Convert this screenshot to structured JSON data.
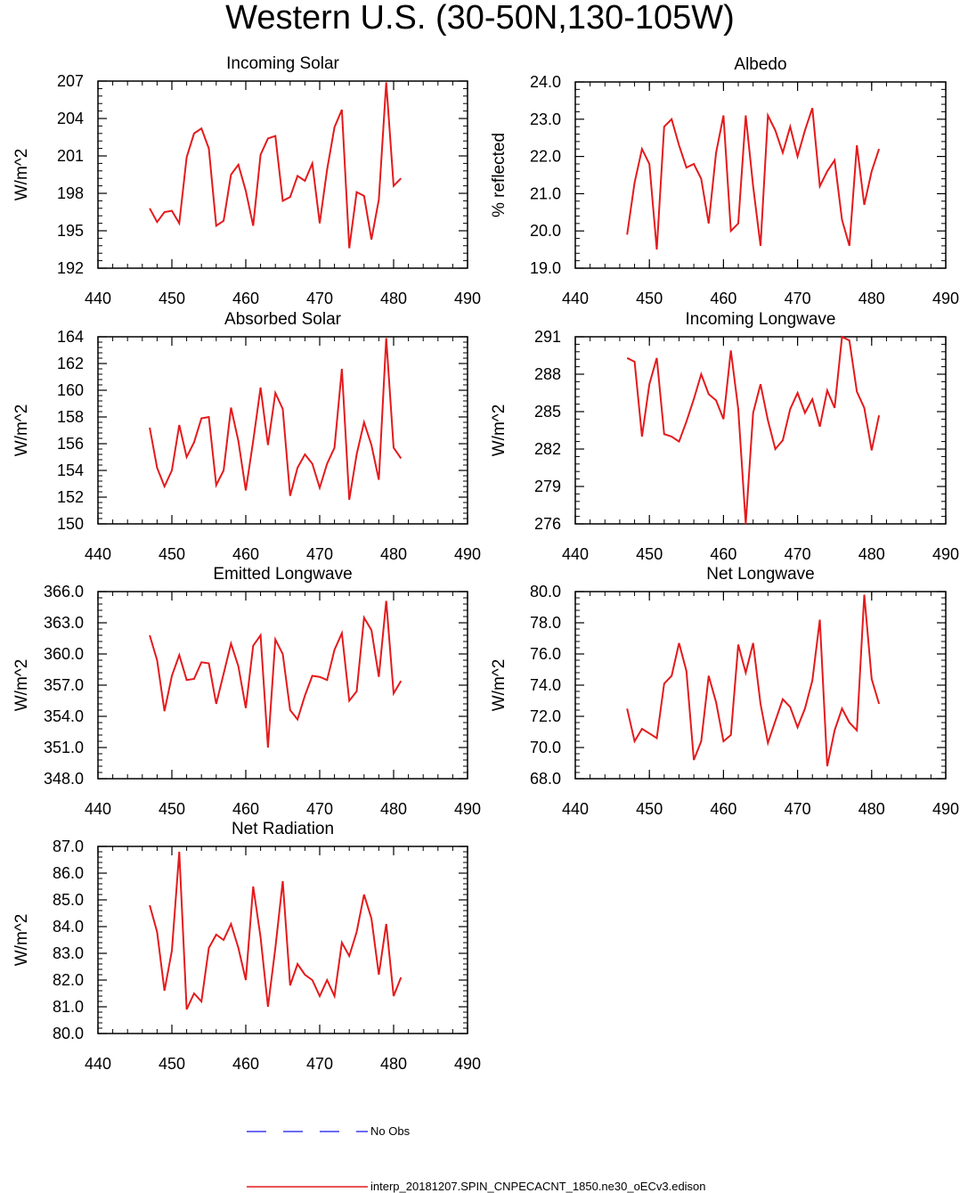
{
  "title": "Western U.S. (30-50N,130-105W)",
  "legend": {
    "obs_label": "No Obs",
    "obs_color": "#3b3bf0",
    "model_label": "interp_20181207.SPIN_CNPECACNT_1850.ne30_oECv3.edison",
    "model_color": "#e41a1c"
  },
  "chart_data": [
    {
      "type": "line",
      "title": "Incoming Solar",
      "ylabel": "W/m^2",
      "xlim": [
        440,
        490
      ],
      "ylim": [
        192,
        207
      ],
      "xticks": [
        "440",
        "450",
        "460",
        "470",
        "480",
        "490"
      ],
      "yticks": [
        "192",
        "195",
        "198",
        "201",
        "204",
        "207"
      ],
      "x": [
        447,
        448,
        449,
        450,
        451,
        452,
        453,
        454,
        455,
        456,
        457,
        458,
        459,
        460,
        461,
        462,
        463,
        464,
        465,
        466,
        467,
        468,
        469,
        470,
        471,
        472,
        473,
        474,
        475,
        476,
        477,
        478,
        479,
        480,
        481
      ],
      "series": [
        {
          "values": [
            196.8,
            195.7,
            196.5,
            196.6,
            195.6,
            200.9,
            202.8,
            203.2,
            201.6,
            195.4,
            195.8,
            199.5,
            200.3,
            198.2,
            195.4,
            201.1,
            202.4,
            202.6,
            197.4,
            197.7,
            199.4,
            199.0,
            200.4,
            195.6,
            199.9,
            203.3,
            204.7,
            193.6,
            198.1,
            197.8,
            194.3,
            197.5,
            206.9,
            198.6,
            199.2
          ]
        }
      ]
    },
    {
      "type": "line",
      "title": "Albedo",
      "ylabel": "% reflected",
      "xlim": [
        440,
        490
      ],
      "ylim": [
        19.0,
        24.0
      ],
      "xticks": [
        "440",
        "450",
        "460",
        "470",
        "480",
        "490"
      ],
      "yticks": [
        "19.0",
        "20.0",
        "21.0",
        "22.0",
        "23.0",
        "24.0"
      ],
      "x": [
        447,
        448,
        449,
        450,
        451,
        452,
        453,
        454,
        455,
        456,
        457,
        458,
        459,
        460,
        461,
        462,
        463,
        464,
        465,
        466,
        467,
        468,
        469,
        470,
        471,
        472,
        473,
        474,
        475,
        476,
        477,
        478,
        479,
        480,
        481
      ],
      "series": [
        {
          "values": [
            19.9,
            21.3,
            22.2,
            21.8,
            19.5,
            22.8,
            23.0,
            22.3,
            21.7,
            21.8,
            21.4,
            20.2,
            22.1,
            23.1,
            20.0,
            20.2,
            23.1,
            21.2,
            19.6,
            23.1,
            22.7,
            22.1,
            22.8,
            22.0,
            22.7,
            23.3,
            21.2,
            21.6,
            21.9,
            20.3,
            19.6,
            22.3,
            20.7,
            21.6,
            22.2
          ]
        }
      ]
    },
    {
      "type": "line",
      "title": "Absorbed Solar",
      "ylabel": "W/m^2",
      "xlim": [
        440,
        490
      ],
      "ylim": [
        150,
        164
      ],
      "xticks": [
        "440",
        "450",
        "460",
        "470",
        "480",
        "490"
      ],
      "yticks": [
        "150",
        "152",
        "154",
        "156",
        "158",
        "160",
        "162",
        "164"
      ],
      "x": [
        447,
        448,
        449,
        450,
        451,
        452,
        453,
        454,
        455,
        456,
        457,
        458,
        459,
        460,
        461,
        462,
        463,
        464,
        465,
        466,
        467,
        468,
        469,
        470,
        471,
        472,
        473,
        474,
        475,
        476,
        477,
        478,
        479,
        480,
        481
      ],
      "series": [
        {
          "values": [
            157.2,
            154.2,
            152.8,
            154.0,
            157.4,
            155.0,
            156.1,
            157.9,
            158.0,
            152.9,
            154.0,
            158.7,
            156.2,
            152.5,
            156.2,
            160.2,
            155.9,
            159.8,
            158.6,
            152.1,
            154.2,
            155.2,
            154.5,
            152.7,
            154.5,
            155.7,
            161.6,
            151.8,
            155.2,
            157.6,
            155.9,
            153.3,
            163.9,
            155.7,
            154.9
          ]
        }
      ]
    },
    {
      "type": "line",
      "title": "Incoming Longwave",
      "ylabel": "W/m^2",
      "xlim": [
        440,
        490
      ],
      "ylim": [
        276,
        291
      ],
      "xticks": [
        "440",
        "450",
        "460",
        "470",
        "480",
        "490"
      ],
      "yticks": [
        "276",
        "279",
        "282",
        "285",
        "288",
        "291"
      ],
      "x": [
        447,
        448,
        449,
        450,
        451,
        452,
        453,
        454,
        455,
        456,
        457,
        458,
        459,
        460,
        461,
        462,
        463,
        464,
        465,
        466,
        467,
        468,
        469,
        470,
        471,
        472,
        473,
        474,
        475,
        476,
        477,
        478,
        479,
        480,
        481
      ],
      "series": [
        {
          "values": [
            289.3,
            289.0,
            283.0,
            287.2,
            289.3,
            283.2,
            283.0,
            282.6,
            284.2,
            286.0,
            288.0,
            286.4,
            285.9,
            284.4,
            289.9,
            285.2,
            276.0,
            284.9,
            287.2,
            284.3,
            282.0,
            282.7,
            285.2,
            286.5,
            284.9,
            286.0,
            283.8,
            286.7,
            285.3,
            291.0,
            290.7,
            286.6,
            285.3,
            281.9,
            284.7
          ]
        }
      ]
    },
    {
      "type": "line",
      "title": "Emitted Longwave",
      "ylabel": "W/m^2",
      "xlim": [
        440,
        490
      ],
      "ylim": [
        348.0,
        366.0
      ],
      "xticks": [
        "440",
        "450",
        "460",
        "470",
        "480",
        "490"
      ],
      "yticks": [
        "348.0",
        "351.0",
        "354.0",
        "357.0",
        "360.0",
        "363.0",
        "366.0"
      ],
      "x": [
        447,
        448,
        449,
        450,
        451,
        452,
        453,
        454,
        455,
        456,
        457,
        458,
        459,
        460,
        461,
        462,
        463,
        464,
        465,
        466,
        467,
        468,
        469,
        470,
        471,
        472,
        473,
        474,
        475,
        476,
        477,
        478,
        479,
        480,
        481
      ],
      "series": [
        {
          "values": [
            361.8,
            359.4,
            354.5,
            357.9,
            359.9,
            357.5,
            357.6,
            359.2,
            359.1,
            355.2,
            358.1,
            361.0,
            358.8,
            354.8,
            360.8,
            361.8,
            351.0,
            361.4,
            360.0,
            354.6,
            353.7,
            356.0,
            357.9,
            357.8,
            357.5,
            360.4,
            362.0,
            355.5,
            356.4,
            363.5,
            362.3,
            357.8,
            365.1,
            356.2,
            357.4
          ]
        }
      ]
    },
    {
      "type": "line",
      "title": "Net Longwave",
      "ylabel": "W/m^2",
      "xlim": [
        440,
        490
      ],
      "ylim": [
        68.0,
        80.0
      ],
      "xticks": [
        "440",
        "450",
        "460",
        "470",
        "480",
        "490"
      ],
      "yticks": [
        "68.0",
        "70.0",
        "72.0",
        "74.0",
        "76.0",
        "78.0",
        "80.0"
      ],
      "x": [
        447,
        448,
        449,
        450,
        451,
        452,
        453,
        454,
        455,
        456,
        457,
        458,
        459,
        460,
        461,
        462,
        463,
        464,
        465,
        466,
        467,
        468,
        469,
        470,
        471,
        472,
        473,
        474,
        475,
        476,
        477,
        478,
        479,
        480,
        481
      ],
      "series": [
        {
          "values": [
            72.5,
            70.4,
            71.2,
            70.9,
            70.6,
            74.1,
            74.6,
            76.7,
            74.9,
            69.2,
            70.4,
            74.6,
            72.9,
            70.4,
            70.8,
            76.6,
            74.8,
            76.7,
            72.8,
            70.3,
            71.7,
            73.1,
            72.6,
            71.3,
            72.5,
            74.3,
            78.2,
            68.8,
            71.1,
            72.5,
            71.6,
            71.1,
            79.8,
            74.4,
            72.8
          ]
        }
      ]
    },
    {
      "type": "line",
      "title": "Net Radiation",
      "ylabel": "W/m^2",
      "xlim": [
        440,
        490
      ],
      "ylim": [
        80.0,
        87.0
      ],
      "xticks": [
        "440",
        "450",
        "460",
        "470",
        "480",
        "490"
      ],
      "yticks": [
        "80.0",
        "81.0",
        "82.0",
        "83.0",
        "84.0",
        "85.0",
        "86.0",
        "87.0"
      ],
      "x": [
        447,
        448,
        449,
        450,
        451,
        452,
        453,
        454,
        455,
        456,
        457,
        458,
        459,
        460,
        461,
        462,
        463,
        464,
        465,
        466,
        467,
        468,
        469,
        470,
        471,
        472,
        473,
        474,
        475,
        476,
        477,
        478,
        479,
        480,
        481
      ],
      "series": [
        {
          "values": [
            84.8,
            83.8,
            81.6,
            83.1,
            86.8,
            80.9,
            81.5,
            81.2,
            83.2,
            83.7,
            83.5,
            84.1,
            83.2,
            82.0,
            85.5,
            83.6,
            81.0,
            83.2,
            85.7,
            81.8,
            82.6,
            82.2,
            82.0,
            81.4,
            82.0,
            81.4,
            83.4,
            82.9,
            83.8,
            85.2,
            84.3,
            82.2,
            84.1,
            81.4,
            82.1
          ]
        }
      ]
    }
  ]
}
